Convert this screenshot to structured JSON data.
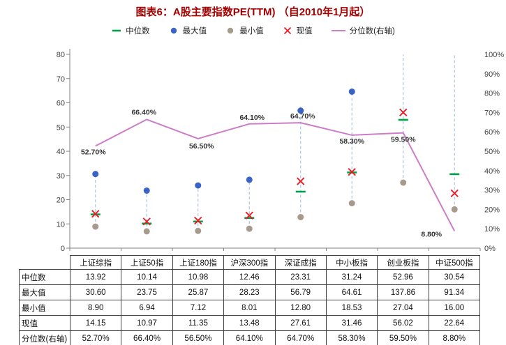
{
  "title": "图表6：A股主要指数PE(TTM) （自2010年1月起）",
  "colors": {
    "title": "#a40000",
    "median": "#00a14b",
    "max": "#3a63c8",
    "min": "#a79b8e",
    "current": "#ec1c24",
    "percentile": "#cd7cc8",
    "range_line": "#a8c6e8",
    "axis": "#808080",
    "axis_text": "#404040",
    "label_text": "#333333"
  },
  "legend": [
    {
      "key": "median",
      "label": "中位数",
      "marker": "dash"
    },
    {
      "key": "max",
      "label": "最大值",
      "marker": "circle"
    },
    {
      "key": "min",
      "label": "最小值",
      "marker": "circle"
    },
    {
      "key": "current",
      "label": "现值",
      "marker": "x"
    },
    {
      "key": "percentile",
      "label": "分位数(右轴)",
      "marker": "line"
    }
  ],
  "chart_data": {
    "type": "scatter",
    "title": "图表6：A股主要指数PE(TTM) （自2010年1月起）",
    "categories": [
      "上证综指",
      "上证50指",
      "上证180指",
      "沪深300指",
      "深证成指",
      "中小板指",
      "创业板指",
      "中证500指"
    ],
    "series": [
      {
        "key": "median",
        "name": "中位数",
        "values": [
          13.92,
          10.14,
          10.98,
          12.46,
          23.31,
          31.24,
          52.96,
          30.54
        ],
        "axis": "left"
      },
      {
        "key": "max",
        "name": "最大值",
        "values": [
          30.6,
          23.75,
          25.87,
          28.23,
          56.79,
          64.61,
          137.86,
          91.34
        ],
        "axis": "left"
      },
      {
        "key": "min",
        "name": "最小值",
        "values": [
          8.9,
          6.94,
          7.12,
          8.01,
          12.8,
          18.53,
          27.04,
          16.0
        ],
        "axis": "left"
      },
      {
        "key": "current",
        "name": "现值",
        "values": [
          14.15,
          10.97,
          11.35,
          13.48,
          27.61,
          31.46,
          56.02,
          22.64
        ],
        "axis": "left"
      },
      {
        "key": "percentile",
        "name": "分位数(右轴)",
        "values": [
          52.7,
          66.4,
          56.5,
          64.1,
          64.7,
          58.3,
          59.5,
          8.8
        ],
        "axis": "right"
      }
    ],
    "point_labels": [
      "52.70%",
      "66.40%",
      "56.50%",
      "64.10%",
      "64.70%",
      "58.30%",
      "59.50%",
      "8.80%"
    ],
    "left_axis": {
      "min": 0,
      "max": 80,
      "step": 10,
      "ticks": [
        "0",
        "10",
        "20",
        "30",
        "40",
        "50",
        "60",
        "70",
        "80"
      ]
    },
    "right_axis": {
      "min": 0,
      "max": 100,
      "step": 10,
      "suffix": "%",
      "ticks": [
        "0%",
        "10%",
        "20%",
        "30%",
        "40%",
        "50%",
        "60%",
        "70%",
        "80%",
        "90%",
        "100%"
      ]
    },
    "grid": false,
    "legend_position": "top"
  },
  "table": {
    "corner": "",
    "columns": [
      "上证综指",
      "上证50指",
      "上证180指",
      "沪深300指",
      "深证成指",
      "中小板指",
      "创业板指",
      "中证500指"
    ],
    "rows": [
      {
        "label": "中位数",
        "values": [
          "13.92",
          "10.14",
          "10.98",
          "12.46",
          "23.31",
          "31.24",
          "52.96",
          "30.54"
        ]
      },
      {
        "label": "最大值",
        "values": [
          "30.60",
          "23.75",
          "25.87",
          "28.23",
          "56.79",
          "64.61",
          "137.86",
          "91.34"
        ]
      },
      {
        "label": "最小值",
        "values": [
          "8.90",
          "6.94",
          "7.12",
          "8.01",
          "12.80",
          "18.53",
          "27.04",
          "16.00"
        ]
      },
      {
        "label": "现值",
        "values": [
          "14.15",
          "10.97",
          "11.35",
          "13.48",
          "27.61",
          "31.46",
          "56.02",
          "22.64"
        ]
      },
      {
        "label": "分位数(右轴)",
        "values": [
          "52.70%",
          "66.40%",
          "56.50%",
          "64.10%",
          "64.70%",
          "58.30%",
          "59.50%",
          "8.80%"
        ]
      }
    ]
  }
}
